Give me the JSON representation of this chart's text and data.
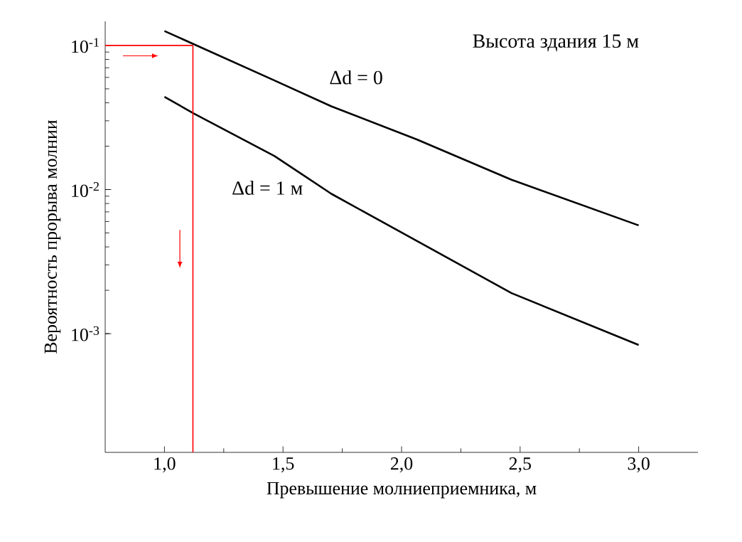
{
  "chart_data": {
    "type": "line",
    "xlabel": "Превышение молниеприемника,  м",
    "ylabel": "Вероятность прорыва молнии",
    "log": "y",
    "xlim": [
      0.75,
      3.25
    ],
    "ylim": [
      0.00015,
      0.147
    ],
    "xticks": [
      {
        "value": 1.0,
        "label": "1,0"
      },
      {
        "value": 1.5,
        "label": "1,5"
      },
      {
        "value": 2.0,
        "label": "2,0"
      },
      {
        "value": 2.5,
        "label": "2,5"
      },
      {
        "value": 3.0,
        "label": "3,0"
      }
    ],
    "yticks": [
      {
        "value": 0.001,
        "label": "10$^{-3}$"
      },
      {
        "value": 0.01,
        "label": "10$^{-2}$"
      },
      {
        "value": 0.1,
        "label": "10$^{-1}$"
      }
    ],
    "annotations": [
      "Высота здания 15 м"
    ],
    "ref_lines": [
      {
        "axis": "y",
        "value": 0.1,
        "color": "#ff0000"
      },
      {
        "axis": "x",
        "value": 1.12,
        "color": "#ff0000"
      }
    ],
    "series": [
      {
        "name": "Δd = 0",
        "color": "#000000",
        "x": [
          1.0,
          1.464,
          1.704,
          2.064,
          2.464,
          3.0
        ],
        "values": [
          0.126,
          0.0572,
          0.0378,
          0.0223,
          0.0117,
          0.00564
        ]
      },
      {
        "name": "Δd = 1 м",
        "color": "#000000",
        "x": [
          1.0,
          1.124,
          1.464,
          1.704,
          2.064,
          2.464,
          3.0
        ],
        "values": [
          0.044,
          0.0337,
          0.0171,
          0.00934,
          0.0044,
          0.00191,
          0.000834
        ]
      }
    ]
  }
}
